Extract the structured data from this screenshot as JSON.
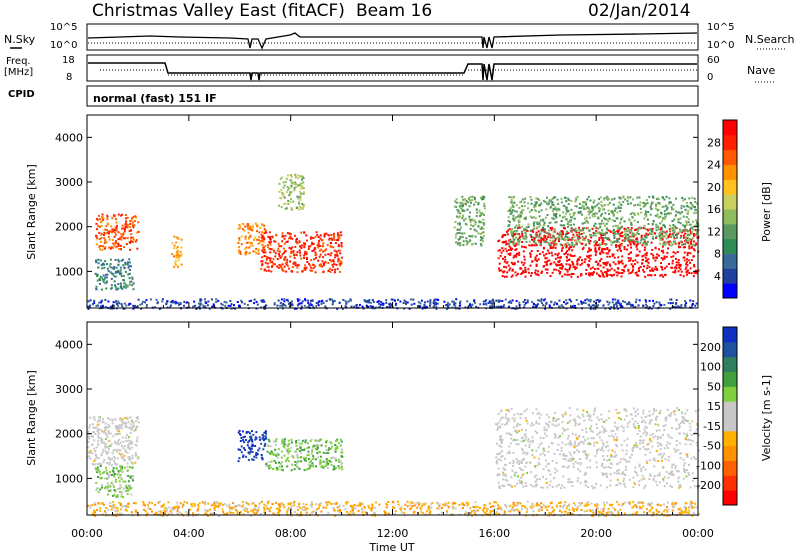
{
  "title": {
    "station": "Christmas Valley East (fitACF)",
    "beam": "Beam 16",
    "date": "02/Jan/2014"
  },
  "header": {
    "nsky_label": "N.Sky",
    "nsearch_label": "N.Search",
    "nsky_ticks": [
      "10^5",
      "10^0"
    ],
    "nsearch_ticks": [
      "10^5",
      "10^0"
    ],
    "freq_label": "Freq.",
    "freq_unit": "[MHz]",
    "freq_ticks": [
      "18",
      "8"
    ],
    "nave_label": "Nave",
    "nave_ticks": [
      "60",
      "0"
    ],
    "cpid_label": "CPID",
    "cpid_text": "normal (fast) 151 IF"
  },
  "chart_data": [
    {
      "type": "heatmap",
      "panel": "power",
      "ylabel": "Slant Range [km]",
      "xlabel": "Time UT",
      "xlim": [
        "00:00",
        "24:00"
      ],
      "ylim": [
        180,
        4500
      ],
      "x_ticks": [
        "00:00",
        "04:00",
        "08:00",
        "12:00",
        "16:00",
        "20:00",
        "00:00"
      ],
      "y_ticks": [
        "1000",
        "2000",
        "3000",
        "4000"
      ],
      "colorbar": {
        "label": "Power [dB]",
        "ticks": [
          "28",
          "24",
          "20",
          "16",
          "12",
          "8",
          "4"
        ],
        "range": [
          0,
          30
        ],
        "colors": [
          "#0000ff",
          "#2040a0",
          "#3a6a9a",
          "#2e8b57",
          "#5a9a60",
          "#8fbc5f",
          "#c8d060",
          "#ffc020",
          "#ff9000",
          "#ff5a00",
          "#ff2000",
          "#ff0000"
        ]
      },
      "regions": [
        {
          "t": [
            0.3,
            2.0
          ],
          "r": [
            1500,
            2300
          ],
          "power": 24
        },
        {
          "t": [
            0.3,
            1.8
          ],
          "r": [
            600,
            1300
          ],
          "power": 8
        },
        {
          "t": [
            3.3,
            3.7
          ],
          "r": [
            1100,
            1800
          ],
          "power": 20
        },
        {
          "t": [
            5.9,
            7.0
          ],
          "r": [
            1400,
            2100
          ],
          "power": 22
        },
        {
          "t": [
            6.8,
            10.0
          ],
          "r": [
            1000,
            1900
          ],
          "power": 26
        },
        {
          "t": [
            7.5,
            8.5
          ],
          "r": [
            2400,
            3200
          ],
          "power": 14
        },
        {
          "t": [
            14.4,
            15.6
          ],
          "r": [
            1600,
            2700
          ],
          "power": 12
        },
        {
          "t": [
            16.1,
            24.0
          ],
          "r": [
            900,
            2000
          ],
          "power": 30
        },
        {
          "t": [
            16.5,
            24.0
          ],
          "r": [
            1600,
            2700
          ],
          "power": 12
        },
        {
          "t": [
            0.0,
            24.0
          ],
          "r": [
            180,
            400
          ],
          "power": 4
        }
      ]
    },
    {
      "type": "heatmap",
      "panel": "velocity",
      "ylabel": "Slant Range [km]",
      "xlabel": "Time UT",
      "xlim": [
        "00:00",
        "24:00"
      ],
      "ylim": [
        180,
        4500
      ],
      "x_ticks": [
        "00:00",
        "04:00",
        "08:00",
        "12:00",
        "16:00",
        "20:00",
        "00:00"
      ],
      "y_ticks": [
        "1000",
        "2000",
        "3000",
        "4000"
      ],
      "colorbar": {
        "label": "Velocity [m s-1]",
        "ticks": [
          "200",
          "100",
          "50",
          "15",
          "-15",
          "-50",
          "-100",
          "-200"
        ],
        "range": [
          -250,
          250
        ],
        "colors": [
          "#ff0000",
          "#ff3000",
          "#ff6000",
          "#ff9000",
          "#ffb000",
          "#c8c8c8",
          "#c8c8c8",
          "#80d040",
          "#40a040",
          "#308060",
          "#2050a0",
          "#1030c0"
        ]
      },
      "regions": [
        {
          "t": [
            0.0,
            2.0
          ],
          "r": [
            1300,
            2400
          ],
          "velocity": 0
        },
        {
          "t": [
            0.3,
            1.8
          ],
          "r": [
            600,
            1300
          ],
          "velocity": 60
        },
        {
          "t": [
            5.9,
            7.0
          ],
          "r": [
            1400,
            2100
          ],
          "velocity": 220
        },
        {
          "t": [
            7.0,
            10.0
          ],
          "r": [
            1200,
            1900
          ],
          "velocity": 70
        },
        {
          "t": [
            16.0,
            24.0
          ],
          "r": [
            800,
            2600
          ],
          "velocity": 0
        },
        {
          "t": [
            0.0,
            24.0
          ],
          "r": [
            180,
            500
          ],
          "velocity": -60
        }
      ]
    }
  ]
}
